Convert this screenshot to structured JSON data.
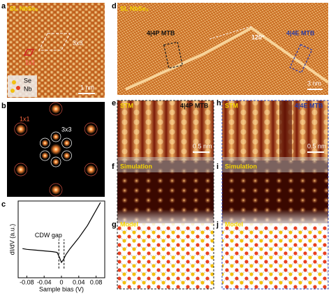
{
  "panels": {
    "a": {
      "label": "a",
      "sample": "SL NbSe₂",
      "cell_large": "3x3",
      "cell_small": "1x1",
      "atom_top": "Se",
      "atom_bottom": "Nb",
      "scale": "1 nm"
    },
    "b": {
      "label": "b",
      "spot_small": "1x1",
      "spot_large": "3x3"
    },
    "c": {
      "label": "c",
      "ylabel": "dI/dV (a.u.)",
      "xlabel": "Sample bias (V)",
      "annotation": "CDW gap",
      "x": [
        -0.09,
        -0.08,
        -0.06,
        -0.04,
        -0.02,
        -0.01,
        -0.005,
        0,
        0.005,
        0.01,
        0.02,
        0.03,
        0.04,
        0.05,
        0.06,
        0.07,
        0.08,
        0.09
      ],
      "values": [
        0.38,
        0.37,
        0.36,
        0.35,
        0.34,
        0.33,
        0.27,
        0.2,
        0.24,
        0.3,
        0.38,
        0.45,
        0.52,
        0.6,
        0.68,
        0.78,
        0.88,
        0.98
      ],
      "gap_edges": [
        -0.006,
        0.006
      ],
      "xlim": [
        -0.1,
        0.1
      ],
      "ylim": [
        0,
        1
      ],
      "xticks": [
        -0.08,
        -0.04,
        0,
        0.04,
        0.08
      ]
    },
    "d": {
      "label": "d",
      "sample": "SL NbSe₂",
      "mtb_p": "4|4P MTB",
      "angle": "120°",
      "mtb_e": "4|4E MTB",
      "scale": "3 nm"
    },
    "e": {
      "label": "e",
      "mode": "STM",
      "title": "4|4P MTB",
      "scale": "0.5 nm"
    },
    "f": {
      "label": "f",
      "mode": "Simulation"
    },
    "g": {
      "label": "g",
      "mode": "Model"
    },
    "h": {
      "label": "h",
      "mode": "STM",
      "title": "4|4E MTB",
      "scale": "0.5 nm"
    },
    "i": {
      "label": "i",
      "mode": "Simulation"
    },
    "j": {
      "label": "j",
      "mode": "Model"
    }
  }
}
